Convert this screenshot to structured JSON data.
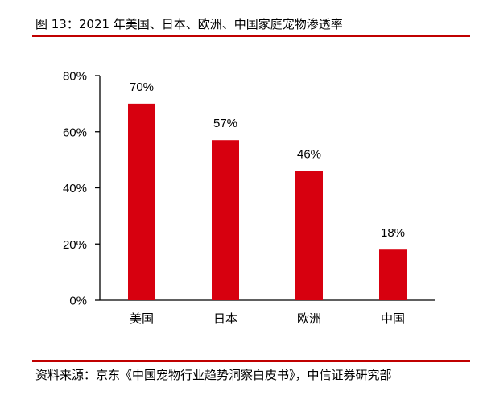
{
  "figure": {
    "title": "图 13：2021 年美国、日本、欧洲、中国家庭宠物渗透率",
    "source": "资料来源：京东《中国宠物行业趋势洞察白皮书》，中信证券研究部"
  },
  "colors": {
    "bar": "#d7000f",
    "rule": "#c00000",
    "axis": "#000000"
  },
  "chart_data": {
    "type": "bar",
    "categories": [
      "美国",
      "日本",
      "欧洲",
      "中国"
    ],
    "values": [
      70,
      57,
      46,
      18
    ],
    "data_labels": [
      "70%",
      "57%",
      "46%",
      "18%"
    ],
    "ylim": [
      0,
      80
    ],
    "yticks": [
      0,
      20,
      40,
      60,
      80
    ],
    "ytick_labels": [
      "0%",
      "20%",
      "40%",
      "60%",
      "80%"
    ],
    "title": "",
    "xlabel": "",
    "ylabel": "",
    "grid": false,
    "legend": "none"
  }
}
